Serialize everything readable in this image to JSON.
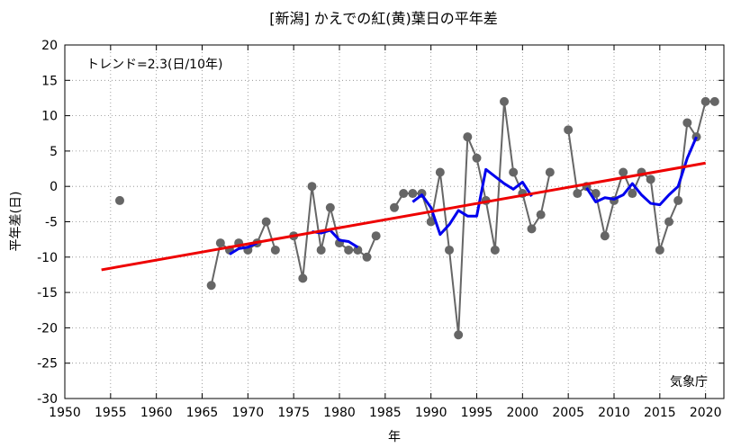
{
  "chart_data": {
    "type": "line",
    "title": "[新潟] かえでの紅(黄)葉日の平年差",
    "xlabel": "年",
    "ylabel": "平年差(日)",
    "xlim": [
      1950,
      2022
    ],
    "ylim": [
      -30,
      20
    ],
    "xticks": [
      1950,
      1955,
      1960,
      1965,
      1970,
      1975,
      1980,
      1985,
      1990,
      1995,
      2000,
      2005,
      2010,
      2015,
      2020
    ],
    "yticks": [
      20,
      15,
      10,
      5,
      0,
      -5,
      -10,
      -15,
      -20,
      -25,
      -30
    ],
    "grid": true,
    "trend_label": "トレンド=2.3(日/10年)",
    "source_label": "気象庁",
    "series": [
      {
        "role": "annual",
        "color": "#666666",
        "points": [
          [
            1956,
            -2
          ],
          [
            1966,
            -14
          ],
          [
            1967,
            -8
          ],
          [
            1968,
            -9
          ],
          [
            1969,
            -8
          ],
          [
            1970,
            -9
          ],
          [
            1971,
            -8
          ],
          [
            1972,
            -5
          ],
          [
            1973,
            -9
          ],
          [
            1975,
            -7
          ],
          [
            1976,
            -13
          ],
          [
            1977,
            0
          ],
          [
            1978,
            -9
          ],
          [
            1979,
            -3
          ],
          [
            1980,
            -8
          ],
          [
            1981,
            -9
          ],
          [
            1982,
            -9
          ],
          [
            1983,
            -10
          ],
          [
            1984,
            -7
          ],
          [
            1986,
            -3
          ],
          [
            1987,
            -1
          ],
          [
            1988,
            -1
          ],
          [
            1989,
            -1
          ],
          [
            1990,
            -5
          ],
          [
            1991,
            2
          ],
          [
            1992,
            -9
          ],
          [
            1993,
            -21
          ],
          [
            1994,
            7
          ],
          [
            1995,
            4
          ],
          [
            1996,
            -2
          ],
          [
            1997,
            -9
          ],
          [
            1998,
            12
          ],
          [
            1999,
            2
          ],
          [
            2000,
            -1
          ],
          [
            2001,
            -6
          ],
          [
            2002,
            -4
          ],
          [
            2003,
            2
          ],
          [
            2005,
            8
          ],
          [
            2006,
            -1
          ],
          [
            2007,
            0
          ],
          [
            2008,
            -1
          ],
          [
            2009,
            -7
          ],
          [
            2010,
            -2
          ],
          [
            2011,
            2
          ],
          [
            2012,
            -1
          ],
          [
            2013,
            2
          ],
          [
            2014,
            1
          ],
          [
            2015,
            -9
          ],
          [
            2016,
            -5
          ],
          [
            2017,
            -2
          ],
          [
            2018,
            9
          ],
          [
            2019,
            7
          ],
          [
            2020,
            12
          ],
          [
            2021,
            12
          ]
        ]
      },
      {
        "role": "moving-average",
        "color": "#0000ee",
        "segments": [
          [
            [
              1968,
              -9.6
            ],
            [
              1969,
              -8.8
            ],
            [
              1970,
              -8.6
            ],
            [
              1971,
              -8.0
            ]
          ],
          [
            [
              1977,
              -6.4
            ],
            [
              1978,
              -6.6
            ],
            [
              1979,
              -6.2
            ],
            [
              1980,
              -7.6
            ],
            [
              1981,
              -7.8
            ],
            [
              1982,
              -8.6
            ]
          ],
          [
            [
              1988,
              -2.2
            ],
            [
              1989,
              -1.2
            ],
            [
              1990,
              -3.0
            ],
            [
              1991,
              -6.8
            ],
            [
              1992,
              -5.4
            ],
            [
              1993,
              -3.4
            ],
            [
              1994,
              -4.2
            ],
            [
              1995,
              -4.2
            ],
            [
              1996,
              2.4
            ],
            [
              1997,
              1.4
            ],
            [
              1998,
              0.4
            ],
            [
              1999,
              -0.4
            ],
            [
              2000,
              0.6
            ],
            [
              2001,
              -1.4
            ]
          ],
          [
            [
              2007,
              -0.2
            ],
            [
              2008,
              -2.2
            ],
            [
              2009,
              -1.6
            ],
            [
              2010,
              -1.8
            ],
            [
              2011,
              -1.2
            ],
            [
              2012,
              0.4
            ],
            [
              2013,
              -1.2
            ],
            [
              2014,
              -2.4
            ],
            [
              2015,
              -2.6
            ],
            [
              2016,
              -1.2
            ],
            [
              2017,
              0.0
            ],
            [
              2018,
              4.0
            ],
            [
              2019,
              7.0
            ]
          ]
        ]
      },
      {
        "role": "trend",
        "color": "#ee0000",
        "points": [
          [
            1954,
            -11.8
          ],
          [
            2020,
            3.3
          ]
        ]
      }
    ]
  }
}
